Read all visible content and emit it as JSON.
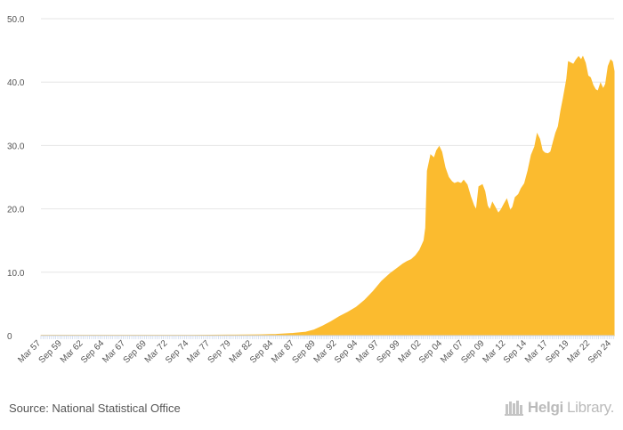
{
  "chart_data": {
    "type": "area",
    "title": "",
    "xlabel": "",
    "ylabel": "",
    "ylim": [
      0,
      50
    ],
    "yticks": [
      0,
      10,
      20,
      30,
      40,
      50
    ],
    "ytick_labels": [
      "0",
      "10.0",
      "20.0",
      "30.0",
      "40.0",
      "50.0"
    ],
    "x_ticks": [
      "Mar 57",
      "Sep 59",
      "Mar 62",
      "Sep 64",
      "Mar 67",
      "Sep 69",
      "Mar 72",
      "Sep 74",
      "Mar 77",
      "Sep 79",
      "Mar 82",
      "Sep 84",
      "Mar 87",
      "Sep 89",
      "Mar 92",
      "Sep 94",
      "Mar 97",
      "Sep 99",
      "Mar 02",
      "Sep 04",
      "Mar 07",
      "Sep 09",
      "Mar 12",
      "Sep 14",
      "Mar 17",
      "Sep 19",
      "Mar 22",
      "Sep 24"
    ],
    "x_start": 1957.17,
    "x_end": 2025.0,
    "grid": true,
    "color": "#fbbb2f",
    "series": [
      {
        "name": "value",
        "points": [
          [
            1957.2,
            0.05
          ],
          [
            1975.0,
            0.05
          ],
          [
            1980.0,
            0.08
          ],
          [
            1983.0,
            0.12
          ],
          [
            1985.0,
            0.2
          ],
          [
            1987.0,
            0.35
          ],
          [
            1988.5,
            0.55
          ],
          [
            1989.5,
            0.9
          ],
          [
            1990.5,
            1.5
          ],
          [
            1991.5,
            2.2
          ],
          [
            1992.5,
            3.0
          ],
          [
            1993.5,
            3.7
          ],
          [
            1994.5,
            4.5
          ],
          [
            1995.5,
            5.6
          ],
          [
            1996.5,
            7.0
          ],
          [
            1997.5,
            8.6
          ],
          [
            1998.5,
            9.8
          ],
          [
            1999.5,
            10.8
          ],
          [
            2000.0,
            11.3
          ],
          [
            2000.5,
            11.7
          ],
          [
            2001.0,
            12.0
          ],
          [
            2001.5,
            12.6
          ],
          [
            2002.0,
            13.5
          ],
          [
            2002.5,
            15.0
          ],
          [
            2002.7,
            17.0
          ],
          [
            2002.9,
            26.0
          ],
          [
            2003.3,
            28.5
          ],
          [
            2003.7,
            28.0
          ],
          [
            2004.0,
            29.2
          ],
          [
            2004.3,
            29.8
          ],
          [
            2004.6,
            29.0
          ],
          [
            2005.0,
            26.5
          ],
          [
            2005.4,
            25.0
          ],
          [
            2005.8,
            24.3
          ],
          [
            2006.1,
            24.0
          ],
          [
            2006.5,
            24.2
          ],
          [
            2006.9,
            24.0
          ],
          [
            2007.2,
            24.5
          ],
          [
            2007.6,
            23.8
          ],
          [
            2008.0,
            22.0
          ],
          [
            2008.4,
            20.5
          ],
          [
            2008.7,
            19.8
          ],
          [
            2009.0,
            23.5
          ],
          [
            2009.4,
            23.8
          ],
          [
            2009.7,
            22.8
          ],
          [
            2010.0,
            20.5
          ],
          [
            2010.3,
            19.8
          ],
          [
            2010.6,
            21.0
          ],
          [
            2010.9,
            20.3
          ],
          [
            2011.3,
            19.3
          ],
          [
            2011.6,
            19.8
          ],
          [
            2012.0,
            20.8
          ],
          [
            2012.3,
            21.5
          ],
          [
            2012.7,
            19.7
          ],
          [
            2013.0,
            20.3
          ],
          [
            2013.3,
            21.8
          ],
          [
            2013.7,
            22.3
          ],
          [
            2014.0,
            23.2
          ],
          [
            2014.4,
            24.0
          ],
          [
            2014.8,
            26.0
          ],
          [
            2015.2,
            28.5
          ],
          [
            2015.6,
            29.8
          ],
          [
            2015.9,
            31.8
          ],
          [
            2016.2,
            31.0
          ],
          [
            2016.5,
            29.2
          ],
          [
            2016.8,
            28.8
          ],
          [
            2017.2,
            28.7
          ],
          [
            2017.5,
            29.0
          ],
          [
            2017.8,
            30.5
          ],
          [
            2018.1,
            32.0
          ],
          [
            2018.4,
            33.0
          ],
          [
            2018.7,
            35.5
          ],
          [
            2019.0,
            37.5
          ],
          [
            2019.4,
            40.5
          ],
          [
            2019.6,
            43.2
          ],
          [
            2019.9,
            43.0
          ],
          [
            2020.2,
            42.8
          ],
          [
            2020.5,
            43.5
          ],
          [
            2020.8,
            44.0
          ],
          [
            2021.1,
            43.5
          ],
          [
            2021.3,
            44.0
          ],
          [
            2021.6,
            43.0
          ],
          [
            2021.9,
            41.0
          ],
          [
            2022.2,
            40.7
          ],
          [
            2022.5,
            39.5
          ],
          [
            2022.8,
            38.8
          ],
          [
            2023.1,
            38.6
          ],
          [
            2023.4,
            39.8
          ],
          [
            2023.7,
            38.9
          ],
          [
            2024.0,
            39.7
          ],
          [
            2024.3,
            42.5
          ],
          [
            2024.6,
            43.5
          ],
          [
            2024.8,
            43.2
          ],
          [
            2025.0,
            41.7
          ]
        ]
      }
    ]
  },
  "footer": {
    "source": "Source: National Statistical Office",
    "brand_bold": "Helgi",
    "brand_light": "Library."
  },
  "colors": {
    "area": "#fbbb2f",
    "grid": "#e6e6e6",
    "text": "#555555"
  }
}
